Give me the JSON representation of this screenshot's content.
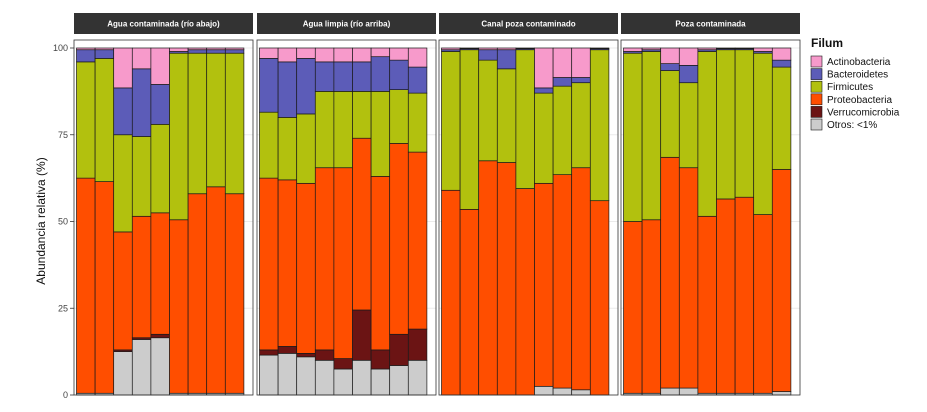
{
  "chart_data": {
    "type": "bar",
    "stacked": true,
    "ylabel": "Abundancia relativa (%)",
    "ylim": [
      0,
      100
    ],
    "y_ticks": [
      0,
      25,
      50,
      75,
      100
    ],
    "y_tick_labels": [
      "0",
      "25",
      "50",
      "75",
      "100"
    ],
    "legend": {
      "title": "Filum",
      "placement": "right",
      "entries": [
        "Actinobacteria",
        "Bacteroidetes",
        "Firmicutes",
        "Proteobacteria",
        "Verrucomicrobia",
        "Otros: <1%"
      ]
    },
    "series_order_bottom_to_top": [
      "Otros: <1%",
      "Verrucomicrobia",
      "Proteobacteria",
      "Firmicutes",
      "Bacteroidetes",
      "Actinobacteria"
    ],
    "colors": {
      "Actinobacteria": "#F79ACB",
      "Bacteroidetes": "#5C5CB8",
      "Firmicutes": "#B2C10E",
      "Proteobacteria": "#FF4E00",
      "Verrucomicrobia": "#6B1414",
      "Otros: <1%": "#CCCCCC"
    },
    "facets": [
      {
        "title": "Agua contaminada (río abajo)",
        "bars": [
          {
            "Otros: <1%": 0.5,
            "Verrucomicrobia": 0,
            "Proteobacteria": 62,
            "Firmicutes": 33.5,
            "Bacteroidetes": 3.5,
            "Actinobacteria": 0.5
          },
          {
            "Otros: <1%": 0.5,
            "Verrucomicrobia": 0,
            "Proteobacteria": 61,
            "Firmicutes": 35.5,
            "Bacteroidetes": 2.5,
            "Actinobacteria": 0.5
          },
          {
            "Otros: <1%": 12.5,
            "Verrucomicrobia": 0.5,
            "Proteobacteria": 34,
            "Firmicutes": 28,
            "Bacteroidetes": 13.5,
            "Actinobacteria": 11.5
          },
          {
            "Otros: <1%": 16,
            "Verrucomicrobia": 0.5,
            "Proteobacteria": 35,
            "Firmicutes": 23,
            "Bacteroidetes": 19.5,
            "Actinobacteria": 6
          },
          {
            "Otros: <1%": 16.5,
            "Verrucomicrobia": 1,
            "Proteobacteria": 35,
            "Firmicutes": 25.5,
            "Bacteroidetes": 11.5,
            "Actinobacteria": 10.5
          },
          {
            "Otros: <1%": 0.5,
            "Verrucomicrobia": 0,
            "Proteobacteria": 50,
            "Firmicutes": 48,
            "Bacteroidetes": 0.5,
            "Actinobacteria": 1
          },
          {
            "Otros: <1%": 0.5,
            "Verrucomicrobia": 0,
            "Proteobacteria": 57.5,
            "Firmicutes": 40.5,
            "Bacteroidetes": 1,
            "Actinobacteria": 0.5
          },
          {
            "Otros: <1%": 0.5,
            "Verrucomicrobia": 0,
            "Proteobacteria": 59.5,
            "Firmicutes": 38.5,
            "Bacteroidetes": 1,
            "Actinobacteria": 0.5
          },
          {
            "Otros: <1%": 0.5,
            "Verrucomicrobia": 0,
            "Proteobacteria": 57.5,
            "Firmicutes": 40.5,
            "Bacteroidetes": 1,
            "Actinobacteria": 0.5
          }
        ]
      },
      {
        "title": "Agua limpia (río arriba)",
        "bars": [
          {
            "Otros: <1%": 11.5,
            "Verrucomicrobia": 1.5,
            "Proteobacteria": 49.5,
            "Firmicutes": 19,
            "Bacteroidetes": 15.5,
            "Actinobacteria": 3
          },
          {
            "Otros: <1%": 12,
            "Verrucomicrobia": 2,
            "Proteobacteria": 48,
            "Firmicutes": 18,
            "Bacteroidetes": 16,
            "Actinobacteria": 4
          },
          {
            "Otros: <1%": 11,
            "Verrucomicrobia": 1,
            "Proteobacteria": 49,
            "Firmicutes": 20,
            "Bacteroidetes": 16,
            "Actinobacteria": 3
          },
          {
            "Otros: <1%": 10,
            "Verrucomicrobia": 3,
            "Proteobacteria": 52.5,
            "Firmicutes": 22,
            "Bacteroidetes": 8.5,
            "Actinobacteria": 4
          },
          {
            "Otros: <1%": 7.5,
            "Verrucomicrobia": 3,
            "Proteobacteria": 55,
            "Firmicutes": 22,
            "Bacteroidetes": 8.5,
            "Actinobacteria": 4
          },
          {
            "Otros: <1%": 10,
            "Verrucomicrobia": 14.5,
            "Proteobacteria": 49.5,
            "Firmicutes": 13.5,
            "Bacteroidetes": 8.5,
            "Actinobacteria": 4
          },
          {
            "Otros: <1%": 7.5,
            "Verrucomicrobia": 5.5,
            "Proteobacteria": 50,
            "Firmicutes": 24.5,
            "Bacteroidetes": 10,
            "Actinobacteria": 2.5
          },
          {
            "Otros: <1%": 8.5,
            "Verrucomicrobia": 9,
            "Proteobacteria": 55,
            "Firmicutes": 15.5,
            "Bacteroidetes": 8.5,
            "Actinobacteria": 3.5
          },
          {
            "Otros: <1%": 10,
            "Verrucomicrobia": 9,
            "Proteobacteria": 51,
            "Firmicutes": 17,
            "Bacteroidetes": 7.5,
            "Actinobacteria": 5.5
          }
        ]
      },
      {
        "title": "Canal poza contaminado",
        "bars": [
          {
            "Otros: <1%": 0,
            "Verrucomicrobia": 0,
            "Proteobacteria": 59,
            "Firmicutes": 40,
            "Bacteroidetes": 0.5,
            "Actinobacteria": 0.5
          },
          {
            "Otros: <1%": 0,
            "Verrucomicrobia": 0,
            "Proteobacteria": 53.5,
            "Firmicutes": 46,
            "Bacteroidetes": 0.3,
            "Actinobacteria": 0.2
          },
          {
            "Otros: <1%": 0,
            "Verrucomicrobia": 0,
            "Proteobacteria": 67.5,
            "Firmicutes": 29,
            "Bacteroidetes": 3,
            "Actinobacteria": 0.5
          },
          {
            "Otros: <1%": 0,
            "Verrucomicrobia": 0,
            "Proteobacteria": 67,
            "Firmicutes": 27,
            "Bacteroidetes": 5.5,
            "Actinobacteria": 0.5
          },
          {
            "Otros: <1%": 0,
            "Verrucomicrobia": 0,
            "Proteobacteria": 59.5,
            "Firmicutes": 40,
            "Bacteroidetes": 0.3,
            "Actinobacteria": 0.2
          },
          {
            "Otros: <1%": 2.5,
            "Verrucomicrobia": 0,
            "Proteobacteria": 58.5,
            "Firmicutes": 26,
            "Bacteroidetes": 1.5,
            "Actinobacteria": 11.5
          },
          {
            "Otros: <1%": 2,
            "Verrucomicrobia": 0,
            "Proteobacteria": 61.5,
            "Firmicutes": 25.5,
            "Bacteroidetes": 2.5,
            "Actinobacteria": 8.5
          },
          {
            "Otros: <1%": 1.5,
            "Verrucomicrobia": 0,
            "Proteobacteria": 64,
            "Firmicutes": 24.5,
            "Bacteroidetes": 1.5,
            "Actinobacteria": 8.5
          },
          {
            "Otros: <1%": 0,
            "Verrucomicrobia": 0,
            "Proteobacteria": 56,
            "Firmicutes": 43.5,
            "Bacteroidetes": 0.3,
            "Actinobacteria": 0.2
          }
        ]
      },
      {
        "title": "Poza contaminada",
        "bars": [
          {
            "Otros: <1%": 0.5,
            "Verrucomicrobia": 0,
            "Proteobacteria": 49.5,
            "Firmicutes": 48.5,
            "Bacteroidetes": 0.5,
            "Actinobacteria": 1
          },
          {
            "Otros: <1%": 0.5,
            "Verrucomicrobia": 0,
            "Proteobacteria": 50,
            "Firmicutes": 48.5,
            "Bacteroidetes": 0.5,
            "Actinobacteria": 0.5
          },
          {
            "Otros: <1%": 2,
            "Verrucomicrobia": 0,
            "Proteobacteria": 66.5,
            "Firmicutes": 25,
            "Bacteroidetes": 2,
            "Actinobacteria": 4.5
          },
          {
            "Otros: <1%": 2,
            "Verrucomicrobia": 0,
            "Proteobacteria": 63.5,
            "Firmicutes": 24.5,
            "Bacteroidetes": 5,
            "Actinobacteria": 5
          },
          {
            "Otros: <1%": 0.5,
            "Verrucomicrobia": 0,
            "Proteobacteria": 51,
            "Firmicutes": 47.5,
            "Bacteroidetes": 0.5,
            "Actinobacteria": 0.5
          },
          {
            "Otros: <1%": 0.5,
            "Verrucomicrobia": 0,
            "Proteobacteria": 56,
            "Firmicutes": 43,
            "Bacteroidetes": 0.3,
            "Actinobacteria": 0.2
          },
          {
            "Otros: <1%": 0.5,
            "Verrucomicrobia": 0,
            "Proteobacteria": 56.5,
            "Firmicutes": 42.5,
            "Bacteroidetes": 0.3,
            "Actinobacteria": 0.2
          },
          {
            "Otros: <1%": 0.5,
            "Verrucomicrobia": 0,
            "Proteobacteria": 51.5,
            "Firmicutes": 46.5,
            "Bacteroidetes": 0.5,
            "Actinobacteria": 1
          },
          {
            "Otros: <1%": 1,
            "Verrucomicrobia": 0,
            "Proteobacteria": 64,
            "Firmicutes": 29.5,
            "Bacteroidetes": 2,
            "Actinobacteria": 3.5
          }
        ]
      }
    ]
  }
}
